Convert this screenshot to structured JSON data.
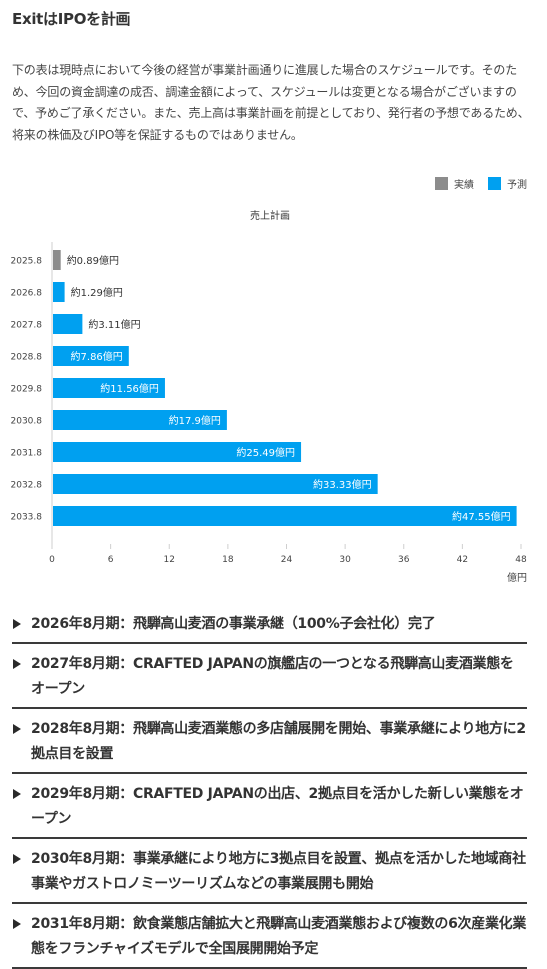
{
  "page": {
    "title": "ExitはIPOを計画",
    "intro": "下の表は現時点において今後の経営が事業計画通りに進展した場合のスケジュールです。そのため、今回の資金調達の成否、調達金額によって、スケジュールは変更となる場合がございますので、予めご了承ください。また、売上高は事業計画を前提としており、発行者の予想であるため、将来の株価及びIPO等を保証するものではありません。"
  },
  "legend": {
    "actual": "実績",
    "forecast": "予測"
  },
  "colors": {
    "actual": "#8c8c8c",
    "forecast": "#00a0f0",
    "axis": "#cfcfcf"
  },
  "chart_data": {
    "type": "bar",
    "orientation": "horizontal",
    "title": "売上計画",
    "xlabel": "億円",
    "ylabel": "",
    "xlim": [
      0,
      48
    ],
    "xticks": [
      0,
      6,
      12,
      18,
      24,
      30,
      36,
      42,
      48
    ],
    "grid": false,
    "legend_position": "top-right",
    "categories": [
      "2025.8",
      "2026.8",
      "2027.8",
      "2028.8",
      "2029.8",
      "2030.8",
      "2031.8",
      "2032.8",
      "2033.8"
    ],
    "values": [
      0.89,
      1.29,
      3.11,
      7.86,
      11.56,
      17.9,
      25.49,
      33.33,
      47.55
    ],
    "status": [
      "実績",
      "予測",
      "予測",
      "予測",
      "予測",
      "予測",
      "予測",
      "予測",
      "予測"
    ],
    "data_labels": [
      "約0.89億円",
      "約1.29億円",
      "約3.11億円",
      "約7.86億円",
      "約11.56億円",
      "約17.9億円",
      "約25.49億円",
      "約33.33億円",
      "約47.55億円"
    ],
    "series": [
      {
        "name": "実績",
        "values": [
          0.89,
          null,
          null,
          null,
          null,
          null,
          null,
          null,
          null
        ]
      },
      {
        "name": "予測",
        "values": [
          null,
          1.29,
          3.11,
          7.86,
          11.56,
          17.9,
          25.49,
          33.33,
          47.55
        ]
      }
    ]
  },
  "milestones": [
    "2026年8月期：飛騨高山麦酒の事業承継（100%子会社化）完了",
    "2027年8月期：CRAFTED JAPANの旗艦店の一つとなる飛騨高山麦酒業態をオープン",
    "2028年8月期：飛騨高山麦酒業態の多店舗展開を開始、事業承継により地方に2拠点目を設置",
    "2029年8月期：CRAFTED JAPANの出店、2拠点目を活かした新しい業態をオープン",
    "2030年8月期：事業承継により地方に3拠点目を設置、拠点を活かした地域商社事業やガストロノミーツーリズムなどの事業展開も開始",
    "2031年8月期：飲食業態店舗拡大と飛騨高山麦酒業態および複数の6次産業化業態をフランチャイズモデルで全国展開開始予定"
  ]
}
